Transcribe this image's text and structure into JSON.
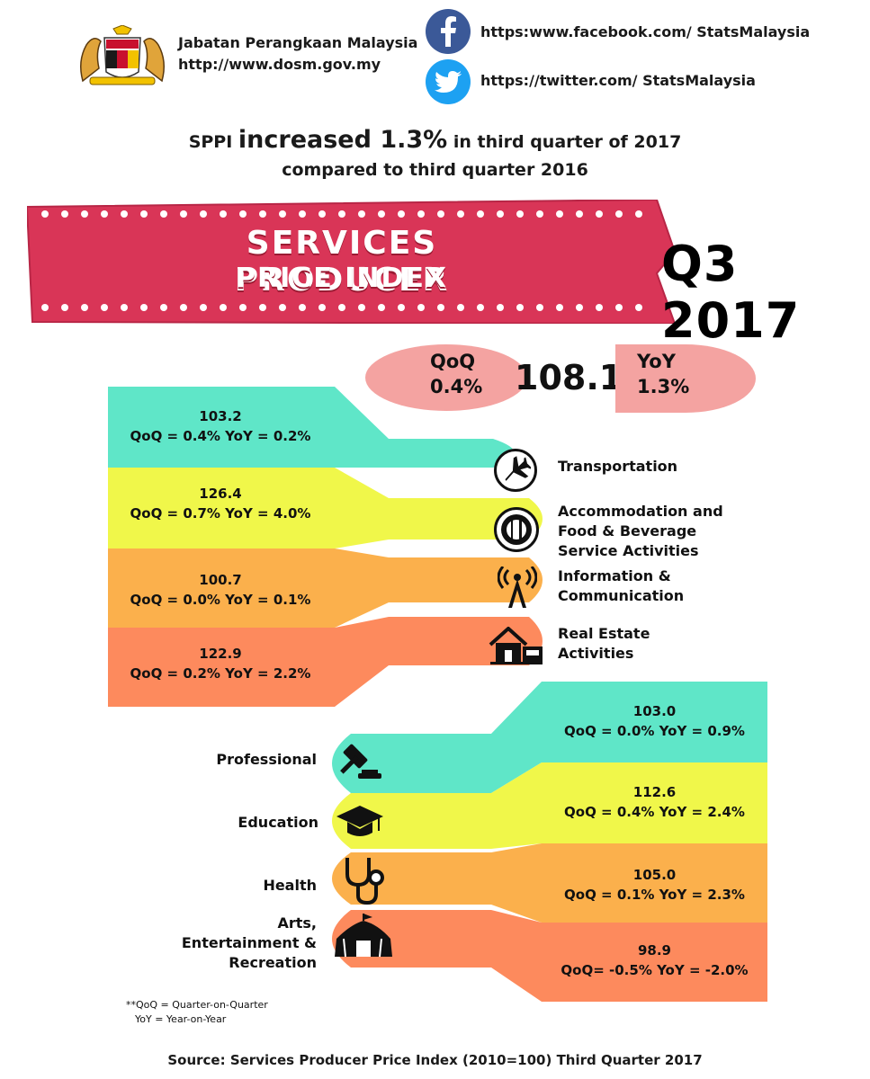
{
  "header": {
    "org_name": "Jabatan Perangkaan Malaysia",
    "org_url": "http://www.dosm.gov.my",
    "facebook": "https:www.facebook.com/ StatsMalaysia",
    "twitter": "https://twitter.com/ StatsMalaysia"
  },
  "headline": {
    "prefix": "SPPI ",
    "emphasis": "increased 1.3%",
    "suffix": " in third quarter of 2017",
    "line2": "compared to third quarter 2016"
  },
  "banner": {
    "line1": "SERVICES PRODUCER",
    "line2": "PRICE INDEX",
    "period": "Q3 2017"
  },
  "overall": {
    "value": "108.1",
    "qoq_label": "QoQ",
    "qoq_value": "0.4%",
    "yoy_label": "YoY",
    "yoy_value": "1.3%"
  },
  "left_sectors": [
    {
      "name": "Transportation",
      "index": "103.2",
      "change": "QoQ = 0.4%   YoY = 0.2%",
      "icon": "airplane-icon"
    },
    {
      "name": "Accommodation and Food &    Beverage Service Activities",
      "index": "126.4",
      "change": "QoQ = 0.7%   YoY = 4.0%",
      "icon": "fork-knife-icon"
    },
    {
      "name": "Information & Communication",
      "index": "100.7",
      "change": "QoQ = 0.0%   YoY = 0.1%",
      "icon": "antenna-icon"
    },
    {
      "name": "Real Estate Activities",
      "index": "122.9",
      "change": "QoQ = 0.2%   YoY = 2.2%",
      "icon": "house-icon"
    }
  ],
  "right_sectors": [
    {
      "name": "Professional",
      "index": "103.0",
      "change": "QoQ = 0.0%    YoY = 0.9%",
      "icon": "gavel-icon"
    },
    {
      "name": "Education",
      "index": "112.6",
      "change": "QoQ = 0.4%    YoY = 2.4%",
      "icon": "graduation-cap-icon"
    },
    {
      "name": "Health",
      "index": "105.0",
      "change": "QoQ = 0.1%    YoY = 2.3%",
      "icon": "stethoscope-icon"
    },
    {
      "name": "Arts, Entertainment & Recreation",
      "index": "98.9",
      "change": "QoQ= -0.5%    YoY = -2.0%",
      "icon": "circus-tent-icon"
    }
  ],
  "footnote": {
    "qoq": "**QoQ = Quarter-on-Quarter",
    "yoy": "YoY = Year-on-Year"
  },
  "source": "Source: Services Producer Price Index (2010=100) Third Quarter 2017",
  "colors": {
    "teal": "#5fe6c8",
    "yellow": "#f0f74a",
    "orange": "#fbb04c",
    "salmon": "#fd8a5d",
    "banner": "#d93557",
    "pill": "#f4a3a1",
    "facebook": "#3b5998",
    "twitter": "#1da1f2"
  }
}
